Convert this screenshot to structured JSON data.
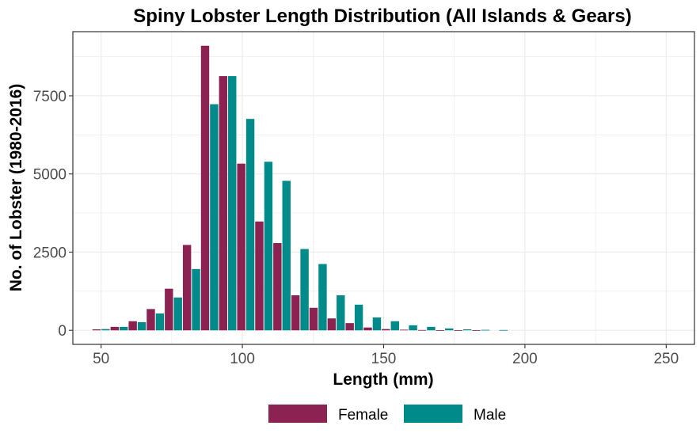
{
  "chart_data": {
    "type": "bar",
    "title": "Spiny Lobster Length Distribution (All Islands & Gears)",
    "xlabel": "Length (mm)",
    "ylabel": "No. of Lobster (1980-2016)",
    "xlim": [
      40,
      260
    ],
    "ylim": [
      -450,
      9550
    ],
    "xticks": [
      50,
      100,
      150,
      200,
      250
    ],
    "yticks": [
      0,
      2500,
      5000,
      7500
    ],
    "grid": true,
    "legend_position": "bottom",
    "bin_width": 6.4,
    "x": [
      50,
      56.4,
      62.8,
      69.2,
      75.6,
      82,
      88.4,
      94.8,
      101.2,
      107.6,
      114,
      120.4,
      126.8,
      133.2,
      139.6,
      146,
      152.4,
      158.8,
      165.2,
      171.6,
      178,
      184.4,
      190.8
    ],
    "series": [
      {
        "name": "Female",
        "color": "#8b2252",
        "values": [
          30,
          110,
          290,
          680,
          1330,
          2730,
          9100,
          8130,
          5330,
          3480,
          2790,
          1120,
          720,
          380,
          230,
          90,
          40,
          20,
          10,
          5,
          2,
          1,
          0
        ]
      },
      {
        "name": "Male",
        "color": "#008b8b",
        "values": [
          40,
          110,
          260,
          540,
          1050,
          1960,
          7230,
          8130,
          6760,
          5390,
          4780,
          2600,
          2120,
          1120,
          820,
          410,
          290,
          160,
          110,
          60,
          30,
          15,
          10
        ]
      }
    ]
  }
}
